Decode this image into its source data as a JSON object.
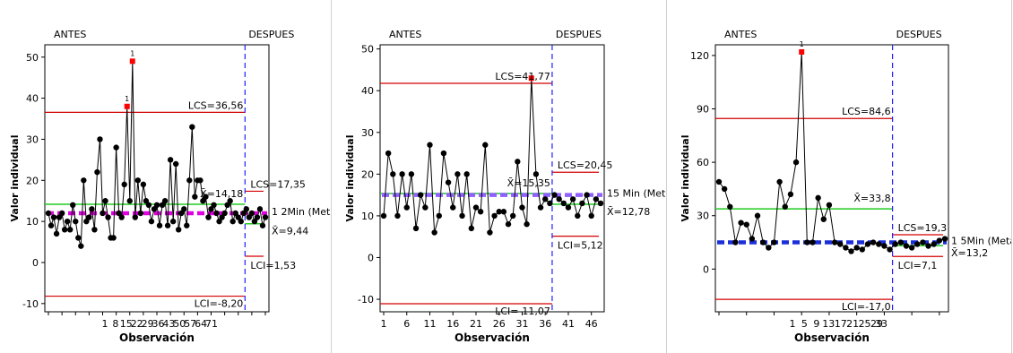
{
  "chart_data": [
    {
      "type": "line",
      "title": "",
      "xlabel": "Observación",
      "ylabel": "Valor individual",
      "stage_labels": [
        "ANTES",
        "DESPUES"
      ],
      "ylim": [
        -12,
        53
      ],
      "yticks": [
        -10,
        0,
        10,
        20,
        30,
        40,
        50
      ],
      "x_tick_labels": [
        "1",
        "8",
        "15",
        "22",
        "29",
        "36",
        "43",
        "50",
        "57",
        "64",
        "71"
      ],
      "split_index": 73,
      "colors": {
        "series": "#000000",
        "limits": "#d40000",
        "mean": "#22cc22",
        "target": "#e000e0",
        "split": "#2020ff",
        "outlier": "#ff0000"
      },
      "series": [
        {
          "values": [
            12,
            9,
            11,
            7,
            11,
            12,
            8,
            10,
            8,
            14,
            10,
            6,
            4,
            20,
            10,
            11,
            13,
            8,
            22,
            30,
            12,
            15,
            11,
            6,
            6,
            28,
            12,
            11,
            19,
            38,
            15,
            49,
            11,
            20,
            12,
            19,
            15,
            14,
            10,
            13,
            14,
            9,
            14,
            15,
            9,
            25,
            10,
            24,
            8,
            12,
            13,
            9,
            20,
            33,
            16,
            20,
            20,
            15,
            16,
            11,
            13,
            14,
            12,
            10,
            11,
            12,
            14,
            15,
            10,
            12,
            11,
            10,
            12,
            13,
            11,
            12,
            10,
            11,
            13,
            9,
            11
          ],
          "outlier_indices": [
            29,
            31
          ],
          "outlier_labels": [
            "1",
            "1"
          ]
        }
      ],
      "before": {
        "LCS": 36.56,
        "mean": 14.18,
        "LCI": -8.2
      },
      "after": {
        "LCS": 17.35,
        "mean": 9.44,
        "LCI": 1.53
      },
      "target": 12,
      "annotations": {
        "lcs_before": "LCS=36,56",
        "lcs_after": "LCS=17,35",
        "mean_before": "X̄=14,18",
        "mean_after": "X̄=9,44",
        "lci_before": "LCI=-8,20",
        "lci_after": "LCI=1,53",
        "target": "1 2Min (Meta)"
      }
    },
    {
      "type": "line",
      "title": "",
      "xlabel": "Observación",
      "ylabel": "Valor individual",
      "stage_labels": [
        "ANTES",
        "DESPUES"
      ],
      "ylim": [
        -13,
        51
      ],
      "yticks": [
        -10,
        0,
        10,
        20,
        30,
        40,
        50
      ],
      "x_tick_labels": [
        "1",
        "6",
        "11",
        "16",
        "21",
        "26",
        "31",
        "36",
        "41",
        "46"
      ],
      "split_index": 37,
      "colors": {
        "series": "#000000",
        "limits": "#d40000",
        "mean": "#22cc22",
        "target": "#9060ff",
        "split": "#2020ff",
        "outlier": "#ff0000"
      },
      "series": [
        {
          "values": [
            10,
            25,
            20,
            10,
            20,
            12,
            20,
            7,
            15,
            12,
            27,
            6,
            10,
            25,
            18,
            12,
            20,
            10,
            20,
            7,
            12,
            11,
            27,
            6,
            10,
            11,
            11,
            8,
            10,
            23,
            12,
            8,
            43,
            20,
            12,
            14,
            13,
            15,
            14,
            13,
            12,
            14,
            10,
            13,
            15,
            10,
            14,
            13
          ],
          "outlier_indices": [
            32
          ],
          "outlier_labels": [
            ""
          ]
        }
      ],
      "before": {
        "LCS": 41.77,
        "mean": 15.35,
        "LCI": -11.07
      },
      "after": {
        "LCS": 20.45,
        "mean": 12.78,
        "LCI": 5.12
      },
      "target": 15,
      "annotations": {
        "lcs_before": "LCS=41,77",
        "lcs_after": "LCS=20,45",
        "mean_before": "X̄=15,35",
        "mean_after": "X̄=12,78",
        "lci_before": "LCI=-11,07",
        "lci_after": "LCI=5,12",
        "target": "15 Min (Meta)"
      }
    },
    {
      "type": "line",
      "title": "",
      "xlabel": "Observación",
      "ylabel": "Valor individual",
      "stage_labels": [
        "ANTES",
        "DESPUES"
      ],
      "ylim": [
        -24,
        126
      ],
      "yticks": [
        0,
        30,
        60,
        90,
        120
      ],
      "x_tick_labels": [
        "1",
        "5",
        "9",
        "13",
        "17",
        "21",
        "25",
        "29",
        "33"
      ],
      "split_index": 32,
      "colors": {
        "series": "#000000",
        "limits": "#d40000",
        "mean": "#22cc22",
        "target": "#1a2fd8",
        "split": "#2020ff",
        "outlier": "#ff0000"
      },
      "series": [
        {
          "values": [
            49,
            45,
            35,
            15,
            26,
            25,
            17,
            30,
            15,
            12,
            15,
            49,
            35,
            42,
            60,
            122,
            15,
            15,
            40,
            28,
            36,
            15,
            14,
            12,
            10,
            12,
            11,
            14,
            15,
            14,
            13,
            11,
            14,
            15,
            13,
            12,
            14,
            15,
            13,
            14,
            16,
            17
          ],
          "outlier_indices": [
            15
          ],
          "outlier_labels": [
            "1"
          ]
        }
      ],
      "before": {
        "LCS": 84.6,
        "mean": 33.8,
        "LCI": -17.0
      },
      "after": {
        "LCS": 19.3,
        "mean": 13.2,
        "LCI": 7.1
      },
      "target": 15,
      "annotations": {
        "lcs_before": "LCS=84,6",
        "lcs_after": "LCS=19,3",
        "mean_before": "X̄=33,8",
        "mean_after": "X̄=13,2",
        "lci_before": "LCI=-17,0",
        "lci_after": "LCI=7,1",
        "target": "1 5Min (Meta)"
      }
    }
  ]
}
